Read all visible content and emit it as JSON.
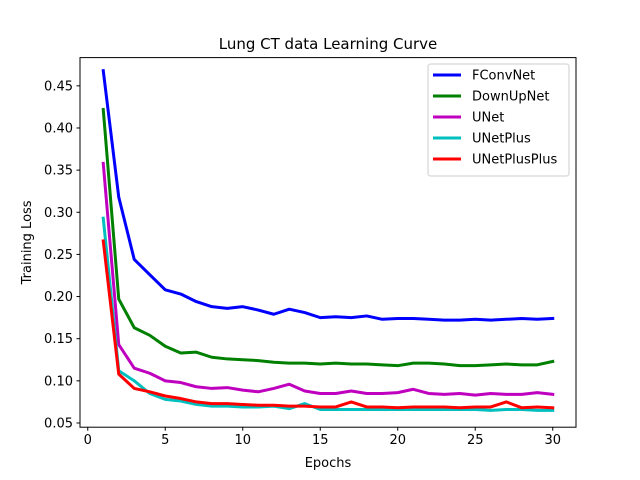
{
  "chart_data": {
    "type": "line",
    "title": "Lung CT data Learning Curve",
    "xlabel": "Epochs",
    "ylabel": "Training Loss",
    "xlim": [
      -0.5,
      31.5
    ],
    "ylim": [
      0.045,
      0.4835
    ],
    "xticks": [
      0,
      5,
      10,
      15,
      20,
      25,
      30
    ],
    "yticks": [
      0.05,
      0.1,
      0.15,
      0.2,
      0.25,
      0.3,
      0.35,
      0.4,
      0.45
    ],
    "grid": false,
    "legend_position": "top-right",
    "x": [
      1,
      2,
      3,
      4,
      5,
      6,
      7,
      8,
      9,
      10,
      11,
      12,
      13,
      14,
      15,
      16,
      17,
      18,
      19,
      20,
      21,
      22,
      23,
      24,
      25,
      26,
      27,
      28,
      29,
      30
    ],
    "series": [
      {
        "name": "FConvNet",
        "color": "#0000ff",
        "values": [
          0.468,
          0.318,
          0.244,
          0.226,
          0.208,
          0.203,
          0.194,
          0.188,
          0.186,
          0.188,
          0.184,
          0.179,
          0.185,
          0.181,
          0.175,
          0.176,
          0.175,
          0.177,
          0.173,
          0.174,
          0.174,
          0.173,
          0.172,
          0.172,
          0.173,
          0.172,
          0.173,
          0.174,
          0.173,
          0.174
        ]
      },
      {
        "name": "DownUpNet",
        "color": "#008000",
        "values": [
          0.422,
          0.197,
          0.163,
          0.154,
          0.141,
          0.133,
          0.134,
          0.128,
          0.126,
          0.125,
          0.124,
          0.122,
          0.121,
          0.121,
          0.12,
          0.121,
          0.12,
          0.12,
          0.119,
          0.118,
          0.121,
          0.121,
          0.12,
          0.118,
          0.118,
          0.119,
          0.12,
          0.119,
          0.119,
          0.123
        ]
      },
      {
        "name": "UNet",
        "color": "#bf00bf",
        "values": [
          0.358,
          0.143,
          0.115,
          0.109,
          0.1,
          0.098,
          0.093,
          0.091,
          0.092,
          0.089,
          0.087,
          0.091,
          0.096,
          0.088,
          0.085,
          0.085,
          0.088,
          0.085,
          0.085,
          0.086,
          0.09,
          0.085,
          0.084,
          0.085,
          0.083,
          0.085,
          0.084,
          0.084,
          0.086,
          0.084
        ]
      },
      {
        "name": "UNetPlus",
        "color": "#00bfbf",
        "values": [
          0.293,
          0.112,
          0.1,
          0.085,
          0.078,
          0.076,
          0.072,
          0.07,
          0.07,
          0.069,
          0.069,
          0.07,
          0.067,
          0.073,
          0.066,
          0.066,
          0.066,
          0.066,
          0.066,
          0.066,
          0.066,
          0.066,
          0.066,
          0.066,
          0.066,
          0.065,
          0.066,
          0.066,
          0.065,
          0.065
        ]
      },
      {
        "name": "UNetPlusPlus",
        "color": "#ff0000",
        "values": [
          0.266,
          0.108,
          0.091,
          0.087,
          0.082,
          0.079,
          0.075,
          0.073,
          0.073,
          0.072,
          0.071,
          0.071,
          0.07,
          0.07,
          0.069,
          0.069,
          0.075,
          0.069,
          0.069,
          0.068,
          0.069,
          0.069,
          0.069,
          0.068,
          0.069,
          0.069,
          0.075,
          0.068,
          0.069,
          0.068
        ]
      }
    ]
  }
}
